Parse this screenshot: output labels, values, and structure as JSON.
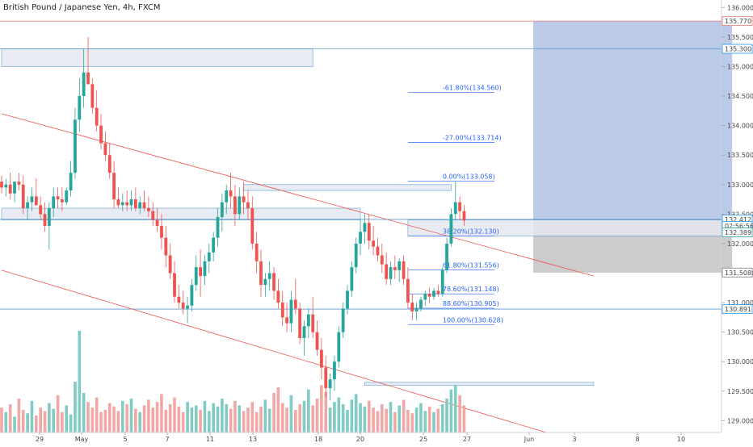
{
  "header": {
    "title": "British Pound / Japanese Yen, 4h, FXCM"
  },
  "chart_data": {
    "type": "candlestick",
    "title": "British Pound / Japanese Yen, 4h, FXCM",
    "ylim": [
      128.8,
      136.1
    ],
    "y_ticks": [
      "136.000",
      "135.500",
      "135.000",
      "134.500",
      "134.000",
      "133.500",
      "133.000",
      "132.500",
      "132.000",
      "131.500",
      "131.000",
      "130.500",
      "130.000",
      "129.500",
      "129.000"
    ],
    "x_ticks": [
      "29",
      "May",
      "5",
      "7",
      "11",
      "13",
      "18",
      "20",
      "25",
      "27",
      "Jun",
      "3",
      "8",
      "10"
    ],
    "price_tags": [
      {
        "label": "135.770",
        "value": 135.77,
        "color": "#e57373"
      },
      {
        "label": "135.300",
        "value": 135.3,
        "color": "#2196f3"
      },
      {
        "label": "132.412",
        "value": 132.41,
        "color": "#2196f3"
      },
      {
        "label": "02:56:56",
        "value": 132.3,
        "color": "#2196f3"
      },
      {
        "label": "132.389",
        "value": 132.19,
        "color": "#26a69a"
      },
      {
        "label": "131.508",
        "value": 131.51,
        "color": "#787b86"
      },
      {
        "label": "130.891",
        "value": 130.89,
        "color": "#2196f3"
      }
    ],
    "fib_levels": [
      {
        "label": "-61.80%(134.560)",
        "value": 134.56
      },
      {
        "label": "-27.00%(133.714)",
        "value": 133.714
      },
      {
        "label": "0.00%(133.058)",
        "value": 133.058
      },
      {
        "label": "38.20%(132.130)",
        "value": 132.13
      },
      {
        "label": "61.80%(131.556)",
        "value": 131.556
      },
      {
        "label": "78.60%(131.148)",
        "value": 131.148
      },
      {
        "label": "88.60%(130.905)",
        "value": 130.905
      },
      {
        "label": "100.00%(130.628)",
        "value": 130.628
      }
    ],
    "horizontal_lines": [
      135.77,
      135.3,
      132.41,
      130.891
    ],
    "zones": [
      {
        "from": 135.0,
        "to": 135.3,
        "start": 0,
        "end": 72,
        "kind": "resistance"
      },
      {
        "from": 132.4,
        "to": 132.6,
        "start": 0,
        "end": 83,
        "kind": "resistance"
      },
      {
        "from": 132.9,
        "to": 133.0,
        "start": 56,
        "end": 104,
        "kind": "resistance"
      },
      {
        "from": 129.6,
        "to": 129.65,
        "start": 84,
        "end": 137,
        "kind": "support"
      },
      {
        "from": 132.13,
        "to": 132.4,
        "start": 94,
        "end": 170,
        "kind": "resistance"
      }
    ],
    "trade_position": {
      "entry": 132.41,
      "target": 135.77,
      "stop": 131.508,
      "start": 123,
      "end": 169
    },
    "trendlines": [
      {
        "p1": [
          0,
          134.2
        ],
        "p2": [
          137,
          131.45
        ]
      },
      {
        "p1": [
          0,
          131.55
        ],
        "p2": [
          126,
          128.8
        ]
      }
    ],
    "candles": [
      [
        133.05,
        133.15,
        132.85,
        132.95
      ],
      [
        132.95,
        133.1,
        132.8,
        133.0
      ],
      [
        133.0,
        133.2,
        132.75,
        132.85
      ],
      [
        132.85,
        133.05,
        132.7,
        133.05
      ],
      [
        133.05,
        133.2,
        132.9,
        133.0
      ],
      [
        133.0,
        133.15,
        132.5,
        132.6
      ],
      [
        132.6,
        132.8,
        132.4,
        132.7
      ],
      [
        132.7,
        132.95,
        132.55,
        132.8
      ],
      [
        132.8,
        133.1,
        132.7,
        132.65
      ],
      [
        132.65,
        132.8,
        132.4,
        132.5
      ],
      [
        132.5,
        132.7,
        132.2,
        132.3
      ],
      [
        132.3,
        132.7,
        131.9,
        132.6
      ],
      [
        132.6,
        132.95,
        132.45,
        132.8
      ],
      [
        132.8,
        132.95,
        132.6,
        132.75
      ],
      [
        132.75,
        132.95,
        132.55,
        132.7
      ],
      [
        132.7,
        132.95,
        132.65,
        132.9
      ],
      [
        132.9,
        133.4,
        132.8,
        133.2
      ],
      [
        133.2,
        134.3,
        133.1,
        134.1
      ],
      [
        134.1,
        134.8,
        133.9,
        134.5
      ],
      [
        134.5,
        135.3,
        134.3,
        134.9
      ],
      [
        134.9,
        135.5,
        134.7,
        134.7
      ],
      [
        134.7,
        134.8,
        134.2,
        134.3
      ],
      [
        134.3,
        134.6,
        133.9,
        134.0
      ],
      [
        134.0,
        134.2,
        133.6,
        133.7
      ],
      [
        133.7,
        133.9,
        133.4,
        133.5
      ],
      [
        133.5,
        133.7,
        133.1,
        133.2
      ],
      [
        133.2,
        133.4,
        132.6,
        132.75
      ],
      [
        132.75,
        132.95,
        132.6,
        132.65
      ],
      [
        132.65,
        132.85,
        132.55,
        132.7
      ],
      [
        132.7,
        132.9,
        132.55,
        132.65
      ],
      [
        132.65,
        132.9,
        132.55,
        132.75
      ],
      [
        132.75,
        132.95,
        132.55,
        132.6
      ],
      [
        132.6,
        132.8,
        132.5,
        132.7
      ],
      [
        132.7,
        132.9,
        132.55,
        132.6
      ],
      [
        132.6,
        132.8,
        132.45,
        132.55
      ],
      [
        132.55,
        132.7,
        132.3,
        132.4
      ],
      [
        132.4,
        132.6,
        132.2,
        132.3
      ],
      [
        132.3,
        132.5,
        131.9,
        132.1
      ],
      [
        132.1,
        132.3,
        131.6,
        131.8
      ],
      [
        131.8,
        132.0,
        131.4,
        131.5
      ],
      [
        131.5,
        131.7,
        131.0,
        131.1
      ],
      [
        131.1,
        131.3,
        130.9,
        131.0
      ],
      [
        131.0,
        131.2,
        130.8,
        130.9
      ],
      [
        130.9,
        131.1,
        130.65,
        130.95
      ],
      [
        130.95,
        131.4,
        130.85,
        131.3
      ],
      [
        131.3,
        131.8,
        131.2,
        131.6
      ],
      [
        131.6,
        131.9,
        131.1,
        131.45
      ],
      [
        131.45,
        131.8,
        131.3,
        131.7
      ],
      [
        131.7,
        132.0,
        131.5,
        131.85
      ],
      [
        131.85,
        132.2,
        131.7,
        132.1
      ],
      [
        132.1,
        132.6,
        131.95,
        132.45
      ],
      [
        132.45,
        132.85,
        132.2,
        132.7
      ],
      [
        132.7,
        133.0,
        132.5,
        132.9
      ],
      [
        132.9,
        133.2,
        132.6,
        132.8
      ],
      [
        132.8,
        133.0,
        132.3,
        132.5
      ],
      [
        132.5,
        132.95,
        132.4,
        132.8
      ],
      [
        132.8,
        133.05,
        132.5,
        132.7
      ],
      [
        132.7,
        132.9,
        132.4,
        132.6
      ],
      [
        132.6,
        132.8,
        131.9,
        132.0
      ],
      [
        132.0,
        132.2,
        131.5,
        131.7
      ],
      [
        131.7,
        131.9,
        131.1,
        131.3
      ],
      [
        131.3,
        131.5,
        131.1,
        131.4
      ],
      [
        131.4,
        131.7,
        131.2,
        131.5
      ],
      [
        131.5,
        131.6,
        131.05,
        131.2
      ],
      [
        131.2,
        131.4,
        130.9,
        131.0
      ],
      [
        131.0,
        131.2,
        130.6,
        130.75
      ],
      [
        130.75,
        131.0,
        130.5,
        130.65
      ],
      [
        130.65,
        131.2,
        130.5,
        131.05
      ],
      [
        131.05,
        131.4,
        130.8,
        130.9
      ],
      [
        130.9,
        131.0,
        130.3,
        130.4
      ],
      [
        130.4,
        130.7,
        130.1,
        130.6
      ],
      [
        130.6,
        130.9,
        130.4,
        130.8
      ],
      [
        130.8,
        131.1,
        130.4,
        130.5
      ],
      [
        130.5,
        130.7,
        130.1,
        130.2
      ],
      [
        130.2,
        130.4,
        129.7,
        129.9
      ],
      [
        129.9,
        130.1,
        129.4,
        129.55
      ],
      [
        129.55,
        129.8,
        129.35,
        129.7
      ],
      [
        129.7,
        130.1,
        129.5,
        130.0
      ],
      [
        130.0,
        130.6,
        129.9,
        130.5
      ],
      [
        130.5,
        131.0,
        130.4,
        130.9
      ],
      [
        130.9,
        131.3,
        130.8,
        131.2
      ],
      [
        131.2,
        131.7,
        131.1,
        131.6
      ],
      [
        131.6,
        132.1,
        131.5,
        132.0
      ],
      [
        132.0,
        132.4,
        131.8,
        132.2
      ],
      [
        132.2,
        132.5,
        132.0,
        132.35
      ],
      [
        132.35,
        132.5,
        131.9,
        132.05
      ],
      [
        132.05,
        132.3,
        131.8,
        131.95
      ],
      [
        131.95,
        132.1,
        131.7,
        131.8
      ],
      [
        131.8,
        132.0,
        131.5,
        131.65
      ],
      [
        131.65,
        131.85,
        131.3,
        131.4
      ],
      [
        131.4,
        131.7,
        131.3,
        131.6
      ],
      [
        131.6,
        131.8,
        131.4,
        131.55
      ],
      [
        131.55,
        131.75,
        131.35,
        131.7
      ],
      [
        131.7,
        131.8,
        131.3,
        131.4
      ],
      [
        131.4,
        131.6,
        130.9,
        131.0
      ],
      [
        131.0,
        131.15,
        130.7,
        130.85
      ],
      [
        130.85,
        131.0,
        130.7,
        130.9
      ],
      [
        130.9,
        131.1,
        130.85,
        131.05
      ],
      [
        131.05,
        131.2,
        130.95,
        131.15
      ],
      [
        131.15,
        131.25,
        131.0,
        131.1
      ],
      [
        131.1,
        131.25,
        131.05,
        131.2
      ],
      [
        131.2,
        131.3,
        131.1,
        131.15
      ],
      [
        131.15,
        131.6,
        131.1,
        131.55
      ],
      [
        131.55,
        132.1,
        131.5,
        132.0
      ],
      [
        132.0,
        132.6,
        131.95,
        132.5
      ],
      [
        132.5,
        133.05,
        132.4,
        132.7
      ],
      [
        132.7,
        132.8,
        132.4,
        132.55
      ],
      [
        132.55,
        132.65,
        132.3,
        132.39
      ]
    ],
    "volumes": [
      0.22,
      0.18,
      0.25,
      0.14,
      0.3,
      0.2,
      0.17,
      0.28,
      0.15,
      0.22,
      0.19,
      0.26,
      0.21,
      0.33,
      0.18,
      0.24,
      0.16,
      0.45,
      0.9,
      0.35,
      0.27,
      0.22,
      0.31,
      0.18,
      0.2,
      0.26,
      0.23,
      0.19,
      0.28,
      0.25,
      0.3,
      0.21,
      0.18,
      0.24,
      0.29,
      0.22,
      0.27,
      0.34,
      0.2,
      0.25,
      0.31,
      0.23,
      0.18,
      0.27,
      0.22,
      0.24,
      0.2,
      0.28,
      0.19,
      0.26,
      0.23,
      0.3,
      0.25,
      0.21,
      0.28,
      0.24,
      0.19,
      0.22,
      0.27,
      0.18,
      0.23,
      0.29,
      0.21,
      0.35,
      0.4,
      0.26,
      0.22,
      0.33,
      0.2,
      0.25,
      0.28,
      0.38,
      0.24,
      0.3,
      0.42,
      0.36,
      0.22,
      0.27,
      0.31,
      0.25,
      0.2,
      0.29,
      0.34,
      0.26,
      0.23,
      0.28,
      0.22,
      0.19,
      0.25,
      0.21,
      0.27,
      0.18,
      0.24,
      0.29,
      0.2,
      0.17,
      0.22,
      0.26,
      0.19,
      0.23,
      0.18,
      0.21,
      0.25,
      0.3,
      0.38,
      0.42,
      0.33,
      0.24
    ]
  }
}
